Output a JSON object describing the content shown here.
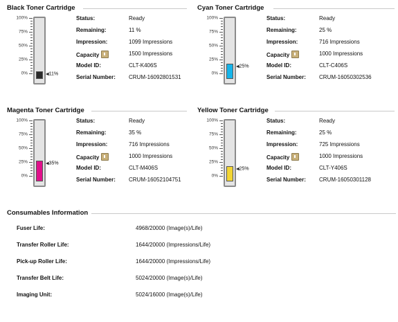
{
  "labels": {
    "status": "Status:",
    "remaining": "Remaining:",
    "impression": "Impression:",
    "capacity": "Capacity",
    "model_id": "Model ID:",
    "serial_number": "Serial Number:"
  },
  "scale_ticks": [
    "100%",
    "75%",
    "50%",
    "25%",
    "0%"
  ],
  "cartridges": [
    {
      "title": "Black Toner Cartridge",
      "status": "Ready",
      "remaining": "11 %",
      "impression": "1099 Impressions",
      "capacity": "1500 Impressions",
      "model_id": "CLT-K406S",
      "serial_number": "CRUM-16092801531",
      "level_pct": 11,
      "level_label": "11%",
      "fill_color": "#2a2a2a",
      "capacity_icon": "info-book-icon"
    },
    {
      "title": "Cyan Toner Cartridge",
      "status": "Ready",
      "remaining": "25 %",
      "impression": "716 Impressions",
      "capacity": "1000 Impressions",
      "model_id": "CLT-C406S",
      "serial_number": "CRUM-16050302536",
      "level_pct": 25,
      "level_label": "25%",
      "fill_color": "#16b4ea",
      "capacity_icon": "info-book-icon"
    },
    {
      "title": "Magenta Toner Cartridge",
      "status": "Ready",
      "remaining": "35 %",
      "impression": "716 Impressions",
      "capacity": "1000 Impressions",
      "model_id": "CLT-M406S",
      "serial_number": "CRUM-16052104751",
      "level_pct": 35,
      "level_label": "35%",
      "fill_color": "#e0108a",
      "capacity_icon": "info-book-icon"
    },
    {
      "title": "Yellow Toner Cartridge",
      "status": "Ready",
      "remaining": "25 %",
      "impression": "725 Impressions",
      "capacity": "1000 Impressions",
      "model_id": "CLT-Y406S",
      "serial_number": "CRUM-16050301128",
      "level_pct": 25,
      "level_label": "25%",
      "fill_color": "#f2d534",
      "capacity_icon": "info-book-icon"
    }
  ],
  "consumables": {
    "title": "Consumables Information",
    "items": [
      {
        "label": "Fuser Life:",
        "value": "4968/20000 (Image(s)/Life)"
      },
      {
        "label": "Transfer Roller Life:",
        "value": "1644/20000 (Impressions/Life)"
      },
      {
        "label": "Pick-up Roller Life:",
        "value": "1644/20000 (Impressions/Life)"
      },
      {
        "label": "Transfer Belt Life:",
        "value": "5024/20000 (Image(s)/Life)"
      },
      {
        "label": "Imaging Unit:",
        "value": "5024/16000 (Image(s)/Life)"
      }
    ]
  }
}
